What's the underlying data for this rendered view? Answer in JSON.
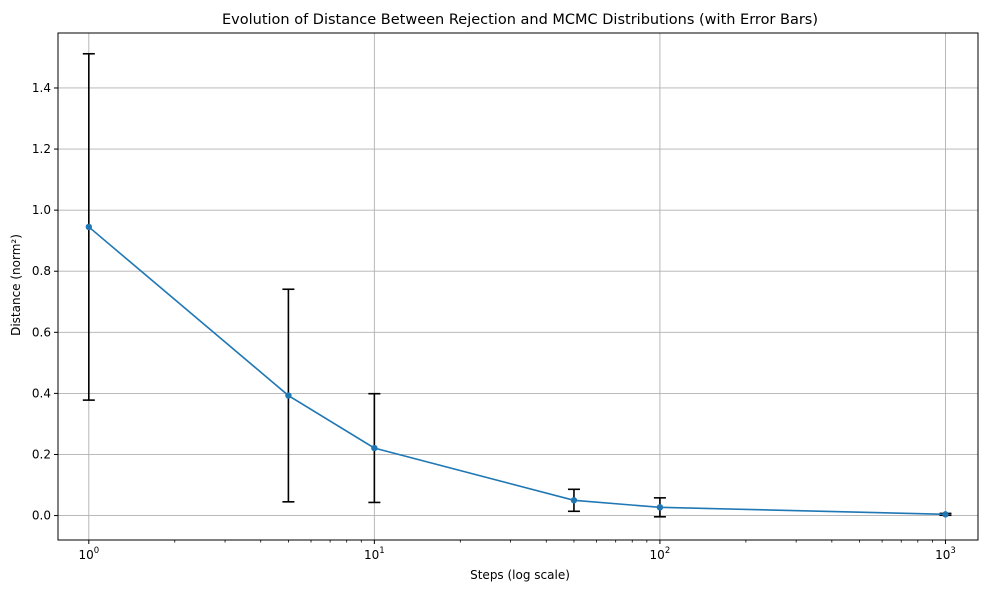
{
  "chart_data": {
    "type": "line",
    "title": "Evolution of Distance Between Rejection and MCMC Distributions (with Error Bars)",
    "xlabel": "Steps (log scale)",
    "ylabel": "Distance (norm²)",
    "x_scale": "log",
    "xlim": [
      0.78,
      1300
    ],
    "ylim": [
      -0.08,
      1.58
    ],
    "x_ticks": [
      {
        "value": 1,
        "base": "10",
        "exp": "0"
      },
      {
        "value": 10,
        "base": "10",
        "exp": "1"
      },
      {
        "value": 100,
        "base": "10",
        "exp": "2"
      },
      {
        "value": 1000,
        "base": "10",
        "exp": "3"
      }
    ],
    "y_ticks": [
      {
        "value": 0.0,
        "label": "0.0"
      },
      {
        "value": 0.2,
        "label": "0.2"
      },
      {
        "value": 0.4,
        "label": "0.4"
      },
      {
        "value": 0.6,
        "label": "0.6"
      },
      {
        "value": 0.8,
        "label": "0.8"
      },
      {
        "value": 1.0,
        "label": "1.0"
      },
      {
        "value": 1.2,
        "label": "1.2"
      },
      {
        "value": 1.4,
        "label": "1.4"
      }
    ],
    "grid": true,
    "line_color": "#1f77b4",
    "errorbar_color": "#000000",
    "series": [
      {
        "x": [
          1,
          5,
          10,
          50,
          100,
          1000
        ],
        "y": [
          0.945,
          0.393,
          0.221,
          0.05,
          0.027,
          0.004
        ],
        "yerr": [
          0.567,
          0.348,
          0.178,
          0.036,
          0.031,
          0.003
        ]
      }
    ]
  }
}
